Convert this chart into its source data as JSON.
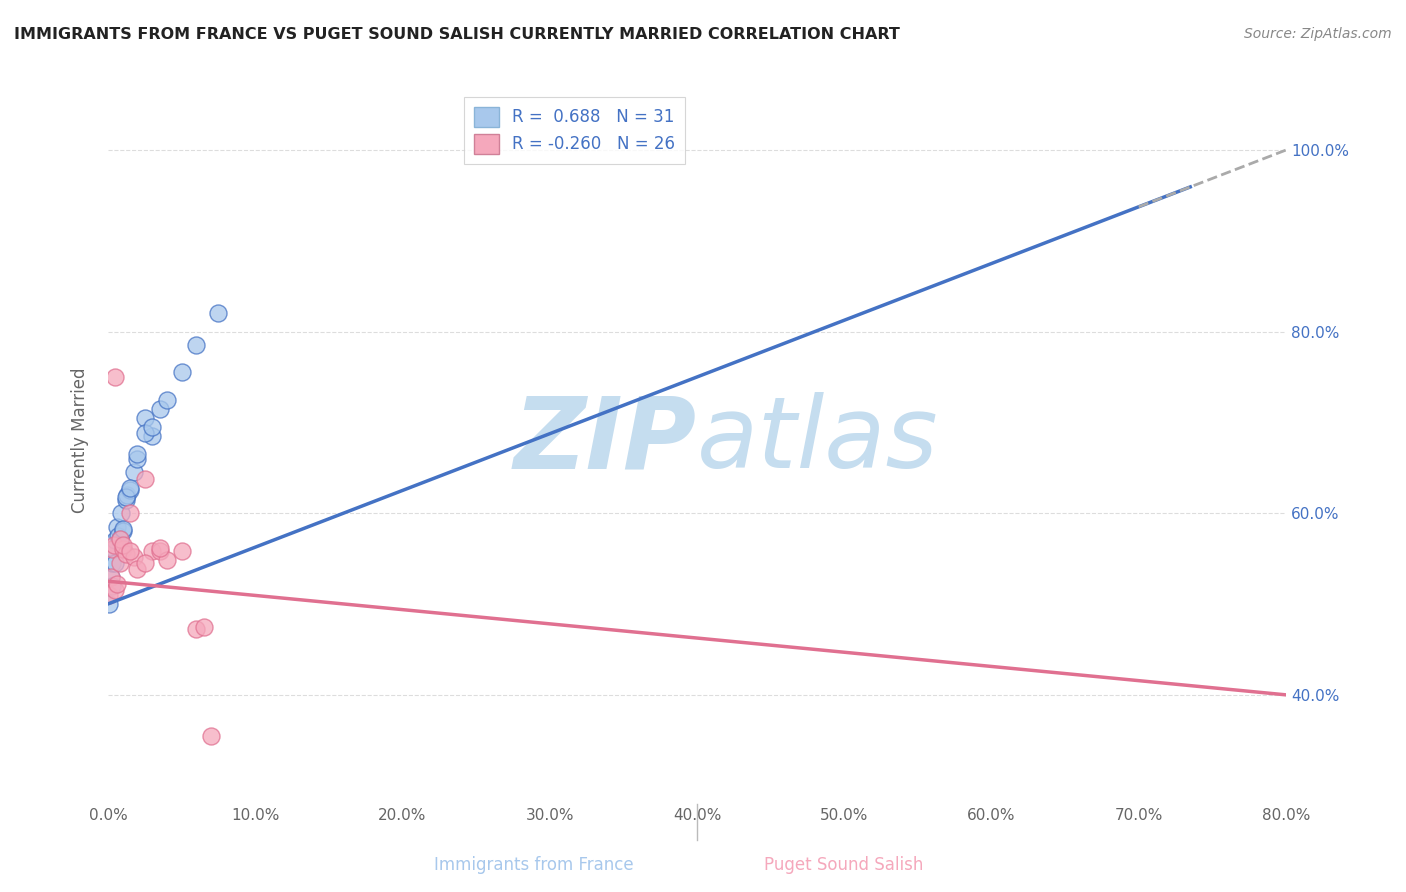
{
  "title": "IMMIGRANTS FROM FRANCE VS PUGET SOUND SALISH CURRENTLY MARRIED CORRELATION CHART",
  "source": "Source: ZipAtlas.com",
  "xlabel_bottom": [
    "Immigrants from France",
    "Puget Sound Salish"
  ],
  "ylabel": "Currently Married",
  "blue_R": 0.688,
  "blue_N": 31,
  "pink_R": -0.26,
  "pink_N": 26,
  "blue_color": "#A8C8EC",
  "pink_color": "#F5A8BC",
  "blue_line_color": "#4472C4",
  "pink_line_color": "#E07090",
  "gray_dash_color": "#AAAAAA",
  "xlim": [
    0.0,
    0.8
  ],
  "ylim": [
    0.28,
    1.08
  ],
  "xticks": [
    0.0,
    0.1,
    0.2,
    0.3,
    0.4,
    0.5,
    0.6,
    0.7,
    0.8
  ],
  "yticks": [
    0.4,
    0.6,
    0.8,
    1.0
  ],
  "blue_x": [
    0.001,
    0.002,
    0.003,
    0.003,
    0.004,
    0.005,
    0.005,
    0.006,
    0.007,
    0.008,
    0.009,
    0.01,
    0.012,
    0.013,
    0.015,
    0.018,
    0.02,
    0.025,
    0.03,
    0.035,
    0.008,
    0.01,
    0.012,
    0.015,
    0.02,
    0.025,
    0.03,
    0.04,
    0.05,
    0.06,
    0.075
  ],
  "blue_y": [
    0.5,
    0.53,
    0.545,
    0.52,
    0.56,
    0.57,
    0.545,
    0.585,
    0.575,
    0.57,
    0.6,
    0.58,
    0.615,
    0.62,
    0.625,
    0.645,
    0.66,
    0.705,
    0.685,
    0.715,
    0.572,
    0.582,
    0.618,
    0.628,
    0.665,
    0.688,
    0.695,
    0.725,
    0.755,
    0.785,
    0.82
  ],
  "pink_x": [
    0.001,
    0.002,
    0.003,
    0.004,
    0.005,
    0.006,
    0.008,
    0.01,
    0.012,
    0.015,
    0.018,
    0.02,
    0.025,
    0.03,
    0.035,
    0.04,
    0.05,
    0.005,
    0.008,
    0.01,
    0.015,
    0.025,
    0.035,
    0.06,
    0.065,
    0.07
  ],
  "pink_y": [
    0.51,
    0.53,
    0.56,
    0.565,
    0.515,
    0.522,
    0.545,
    0.56,
    0.555,
    0.6,
    0.552,
    0.538,
    0.638,
    0.558,
    0.558,
    0.548,
    0.558,
    0.75,
    0.572,
    0.565,
    0.558,
    0.545,
    0.562,
    0.472,
    0.475,
    0.355
  ],
  "background_color": "#FFFFFF",
  "grid_color": "#DDDDDD",
  "watermark_zip": "ZIP",
  "watermark_atlas": "atlas",
  "watermark_color_zip": "#C5DDEF",
  "watermark_color_atlas": "#C5DDEF",
  "legend_blue_label": "R =  0.688   N = 31",
  "legend_pink_label": "R = -0.260   N = 26",
  "label_color_blue": "#4472C4",
  "label_color_pink": "#E07090"
}
